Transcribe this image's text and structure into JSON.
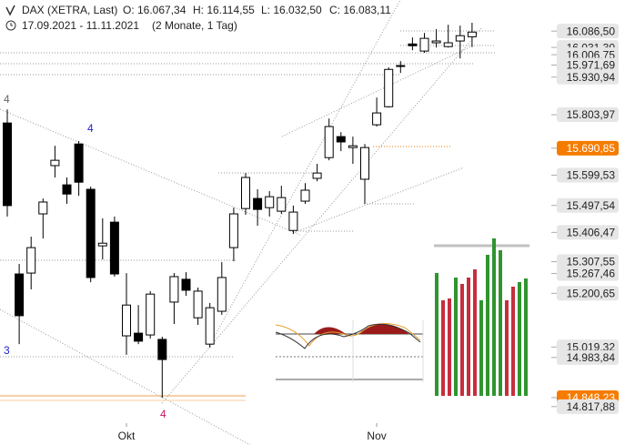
{
  "chart_data": {
    "type": "candlestick",
    "title": "DAX (XETRA, Last)",
    "ohlc_labels": [
      "O: 16.067,34",
      "H: 16.114,55",
      "L: 16.032,50",
      "C: 16.083,11"
    ],
    "date_range": "17.09.2021 - 11.11.2021",
    "period": "(2 Monate, 1 Tag)",
    "categories": [
      null,
      null,
      null,
      null,
      null,
      null,
      null,
      null,
      null,
      null,
      "Okt",
      null,
      null,
      null,
      null,
      null,
      null,
      null,
      null,
      null,
      null,
      null,
      null,
      null,
      null,
      null,
      null,
      null,
      null,
      null,
      null,
      "Nov",
      null,
      null,
      null,
      null,
      null,
      null,
      null,
      null
    ],
    "open": [
      15776,
      15266,
      15269,
      15469,
      15632,
      15567,
      15705,
      15552,
      15361,
      15441,
      15057,
      15066,
      15060,
      15045,
      15171,
      15248,
      15118,
      15029,
      15140,
      15355,
      15487,
      15521,
      15490,
      15478,
      15413,
      15512,
      15589,
      15659,
      15730,
      15693,
      15586,
      15770,
      15831,
      15970,
      16043,
      16019,
      16047,
      16034,
      16053,
      16067.34
    ],
    "high": [
      15822,
      15300,
      15392,
      15521,
      15699,
      15592,
      15715,
      15561,
      15454,
      15460,
      15269,
      15161,
      15208,
      15054,
      15269,
      15272,
      15220,
      15168,
      15306,
      15490,
      15607,
      15552,
      15546,
      15564,
      15497,
      15573,
      15638,
      15791,
      15745,
      15730,
      15705,
      15862,
      15964,
      15985,
      16065,
      16080,
      16093,
      16108,
      16105,
      16114.55
    ],
    "low": [
      15460,
      15029,
      15214,
      15386,
      15592,
      15503,
      15530,
      15238,
      15315,
      15257,
      14993,
      15029,
      15048,
      14848,
      15097,
      15192,
      15094,
      15017,
      15128,
      15309,
      15466,
      15429,
      15460,
      15469,
      15401,
      15503,
      15579,
      15650,
      15681,
      15638,
      15503,
      15764,
      15828,
      15945,
      16022,
      16013,
      16031,
      16031,
      15994,
      16032.5
    ],
    "close": [
      15497,
      15125,
      15355,
      15509,
      15650,
      15536,
      15576,
      15254,
      15370,
      15266,
      15161,
      15039,
      15198,
      14977,
      15257,
      15211,
      15208,
      15152,
      15254,
      15469,
      15592,
      15484,
      15527,
      15524,
      15475,
      15549,
      15607,
      15764,
      15712,
      15699,
      15693,
      15810,
      15957,
      15967,
      16037,
      16062,
      16053,
      16047,
      16071,
      16083.11
    ],
    "up_color": "#ffffff",
    "down_color": "#000000",
    "ylim": [
      14762,
      16130
    ],
    "yticks": [
      {
        "value": 16086.5,
        "label": "16.086,50"
      },
      {
        "value": 16031.3,
        "label": "16.031,30"
      },
      {
        "value": 16006.75,
        "label": "16.006,75"
      },
      {
        "value": 15971.69,
        "label": "15.971,69"
      },
      {
        "value": 15930.94,
        "label": "15.930,94"
      },
      {
        "value": 15803.97,
        "label": "15.803,97"
      },
      {
        "value": 15690.85,
        "label": "15.690,85",
        "color": "#f57c00"
      },
      {
        "value": 15599.53,
        "label": "15.599,53"
      },
      {
        "value": 15497.54,
        "label": "15.497,54"
      },
      {
        "value": 15406.47,
        "label": "15.406,47"
      },
      {
        "value": 15307.55,
        "label": "15.307,55"
      },
      {
        "value": 15267.46,
        "label": "15.267,46"
      },
      {
        "value": 15200.65,
        "label": "15.200,65"
      },
      {
        "value": 15019.32,
        "label": "15.019,32"
      },
      {
        "value": 14983.84,
        "label": "14.983,84"
      },
      {
        "value": 14848.23,
        "label": "14.848,23",
        "color": "#f57c00"
      },
      {
        "value": 14817.88,
        "label": "14.817,88"
      }
    ],
    "annotations": [
      {
        "text": "4",
        "color": "#666666"
      },
      {
        "text": "4",
        "color": "#2222cc"
      },
      {
        "text": "3",
        "color": "#2222cc"
      },
      {
        "text": "4",
        "color": "#cc1166"
      }
    ]
  }
}
